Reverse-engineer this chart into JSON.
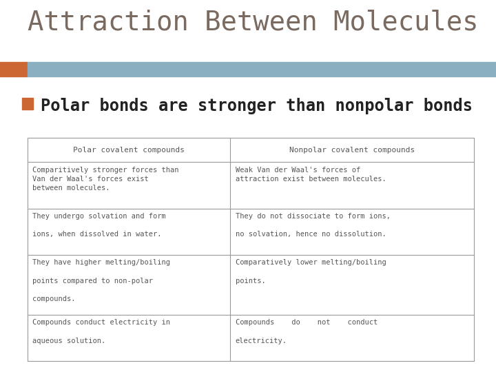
{
  "title": "Attraction Between Molecules",
  "title_color": "#7a6a60",
  "title_fontsize": 28,
  "bullet_text": "Polar bonds are stronger than nonpolar bonds",
  "bullet_fontsize": 17,
  "bullet_color": "#222222",
  "bullet_box_color": "#cc6633",
  "header_bar_color_left": "#cc6633",
  "header_bar_color_right": "#8aafc0",
  "bg_color": "#ffffff",
  "table_header_left": "Polar covalent compounds",
  "table_header_right": "Nonpolar covalent compounds",
  "table_header_fontsize": 8,
  "table_cell_fontsize": 7.5,
  "table_rows_left": [
    "Comparitively stronger forces than\nVan der Waal's forces exist\nbetween molecules.",
    "They undergo solvation and form\n\nions, when dissolved in water.",
    "They have higher melting/boiling\n\npoints compared to non-polar\n\ncompounds.",
    "Compounds conduct electricity in\n\naqueous solution."
  ],
  "table_rows_right": [
    "Weak Van der Waal's forces of\nattraction exist between molecules.",
    "They do not dissociate to form ions,\n\nno solvation, hence no dissolution.",
    "Comparatively lower melting/boiling\n\npoints.",
    "Compounds    do    not    conduct\n\nelectricity."
  ],
  "table_border_color": "#999999",
  "table_text_color": "#555555",
  "font_family": "monospace"
}
